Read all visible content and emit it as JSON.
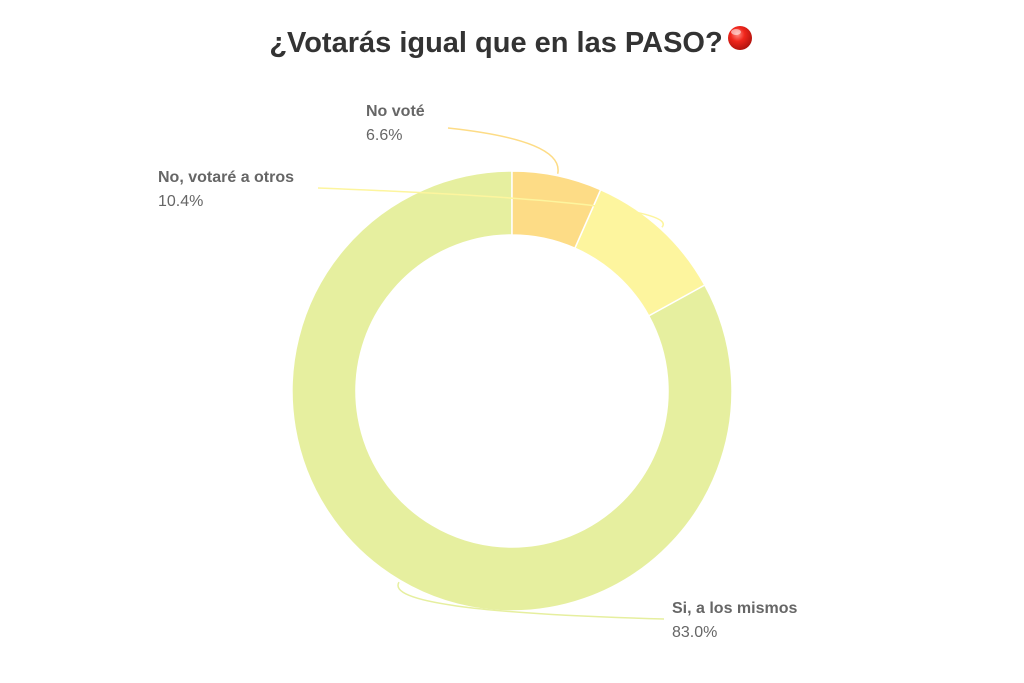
{
  "chart_data": {
    "type": "pie",
    "title": "¿Votarás igual que en las PASO?",
    "title_icon": "red-circle-emoji",
    "title_icon_color": "#e8231b",
    "donut": true,
    "categories": [
      "Si, a los mismos",
      "No, votaré a otros",
      "No voté"
    ],
    "values": [
      83.0,
      10.4,
      6.6
    ],
    "value_labels": [
      "83.0%",
      "10.4%",
      "6.6%"
    ],
    "colors": [
      "#e6ef9f",
      "#fdf59e",
      "#fddc86"
    ],
    "leader_line_colors": [
      "#e6ef9f",
      "#fdf59e",
      "#fddc86"
    ],
    "legend": "none",
    "start_angle": "12 o'clock",
    "direction": "counterclockwise"
  }
}
